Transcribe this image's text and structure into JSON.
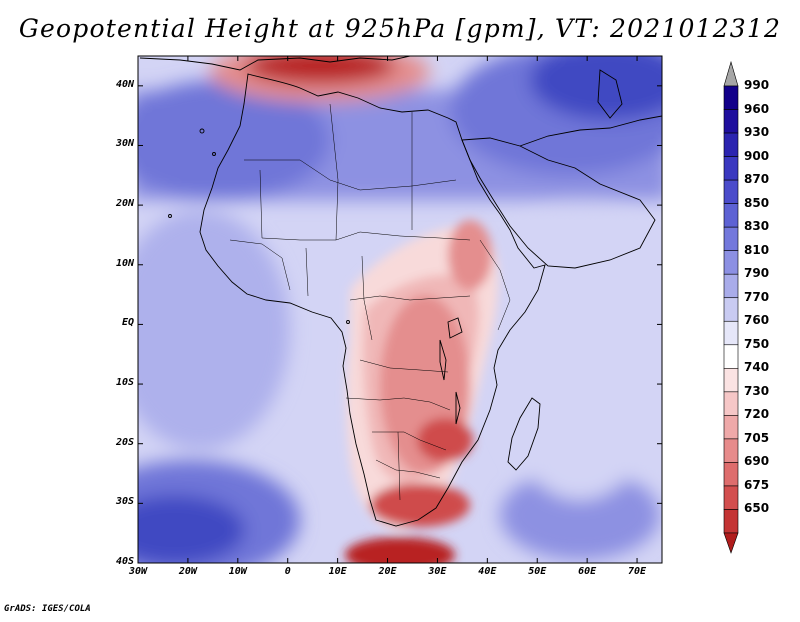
{
  "title": "Geopotential Height at 925hPa [gpm], VT: 2021012312",
  "credit": "GrADS: IGES/COLA",
  "map": {
    "lon_range": [
      -30,
      75
    ],
    "lat_range": [
      -40,
      45
    ],
    "lat_labels": [
      {
        "lat": 40,
        "text": "40N"
      },
      {
        "lat": 30,
        "text": "30N"
      },
      {
        "lat": 20,
        "text": "20N"
      },
      {
        "lat": 10,
        "text": "10N"
      },
      {
        "lat": 0,
        "text": "EQ"
      },
      {
        "lat": -10,
        "text": "10S"
      },
      {
        "lat": -20,
        "text": "20S"
      },
      {
        "lat": -30,
        "text": "30S"
      },
      {
        "lat": -40,
        "text": "40S"
      }
    ],
    "lon_labels": [
      {
        "lon": -30,
        "text": "30W"
      },
      {
        "lon": -20,
        "text": "20W"
      },
      {
        "lon": -10,
        "text": "10W"
      },
      {
        "lon": 0,
        "text": "0"
      },
      {
        "lon": 10,
        "text": "10E"
      },
      {
        "lon": 20,
        "text": "20E"
      },
      {
        "lon": 30,
        "text": "30E"
      },
      {
        "lon": 40,
        "text": "40E"
      },
      {
        "lon": 50,
        "text": "50E"
      },
      {
        "lon": 60,
        "text": "60E"
      },
      {
        "lon": 70,
        "text": "70E"
      }
    ]
  },
  "colorbar": {
    "top_label": "990",
    "levels": [
      {
        "label": "960",
        "color": "#1f0f9e"
      },
      {
        "label": "930",
        "color": "#2b24b0"
      },
      {
        "label": "900",
        "color": "#3a38c0"
      },
      {
        "label": "870",
        "color": "#4b4ccb"
      },
      {
        "label": "850",
        "color": "#5d62d4"
      },
      {
        "label": "830",
        "color": "#7378dc"
      },
      {
        "label": "810",
        "color": "#8c90e3"
      },
      {
        "label": "790",
        "color": "#a9acea"
      },
      {
        "label": "770",
        "color": "#c9cbf2"
      },
      {
        "label": "760",
        "color": "#e6e7f9"
      },
      {
        "label": "750",
        "color": "#ffffff"
      },
      {
        "label": "740",
        "color": "#fbe3e3"
      },
      {
        "label": "730",
        "color": "#f6c7c7"
      },
      {
        "label": "720",
        "color": "#efa9a9"
      },
      {
        "label": "705",
        "color": "#e78b8b"
      },
      {
        "label": "690",
        "color": "#de6d6d"
      },
      {
        "label": "675",
        "color": "#d34f4f"
      },
      {
        "label": "650",
        "color": "#c43434"
      }
    ],
    "top_arrow_color": "#a6a6a6",
    "top_band_color": "#12008a",
    "bottom_band_color": "#b01c1c",
    "bottom_arrow_color": "#b01c1c"
  },
  "field_colors": {
    "deep_blue": "#4048c2",
    "blue": "#6f76d8",
    "mid_blue": "#8d91e2",
    "light_blue": "#aeb1ec",
    "pale_blue": "#d3d4f5",
    "white": "#ffffff",
    "pale_red": "#f8dada",
    "light_red": "#f0b7b7",
    "red": "#e48e8e",
    "dark_red": "#cf4c4c",
    "deep_red": "#b82424"
  }
}
